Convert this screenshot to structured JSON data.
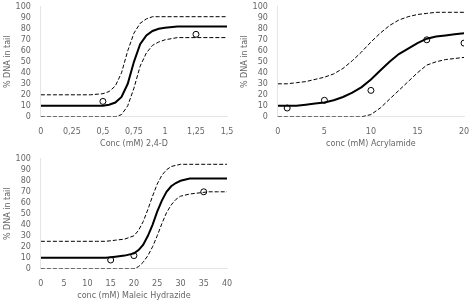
{
  "chart_data": [
    {
      "type": "line",
      "xlabel": "Conc (mM) 2,4-D",
      "ylabel": "% DNA in tail",
      "xlim": [
        0,
        1.5
      ],
      "ylim": [
        0,
        100
      ],
      "xticks": [
        0,
        {
          "value": 0.25,
          "label": "0,25"
        },
        {
          "value": 0.5,
          "label": "0,5"
        },
        {
          "value": 0.75,
          "label": "0,75"
        },
        1,
        {
          "value": 1.25,
          "label": "1,25"
        },
        {
          "value": 1.5,
          "label": "1,5"
        }
      ],
      "yticks": [
        0,
        10,
        20,
        30,
        40,
        50,
        60,
        70,
        80,
        90,
        100
      ],
      "grid": false,
      "series": [
        {
          "type": "line",
          "line_style": "solid",
          "color": "#000000",
          "x": [
            0,
            0.1,
            0.2,
            0.3,
            0.4,
            0.5,
            0.55,
            0.6,
            0.65,
            0.7,
            0.75,
            0.8,
            0.85,
            0.9,
            0.95,
            1.0,
            1.1,
            1.2,
            1.3,
            1.4,
            1.5
          ],
          "values": [
            10,
            10,
            10,
            10,
            10,
            10,
            11,
            13,
            18,
            30,
            50,
            66,
            74,
            78,
            80,
            81,
            82,
            82,
            82,
            82,
            82
          ]
        },
        {
          "type": "line",
          "line_style": "dashed",
          "color": "#000000",
          "x": [
            0,
            0.1,
            0.2,
            0.3,
            0.4,
            0.5,
            0.55,
            0.6,
            0.65,
            0.7,
            0.75,
            0.8,
            0.85,
            0.9,
            0.95,
            1.0,
            1.1,
            1.2,
            1.3,
            1.4,
            1.5
          ],
          "values": [
            20,
            20,
            20,
            20,
            20,
            21,
            23,
            28,
            40,
            60,
            76,
            85,
            89,
            91,
            91,
            91,
            91,
            91,
            91,
            91,
            91
          ]
        },
        {
          "type": "line",
          "line_style": "dashed",
          "color": "#000000",
          "x": [
            0,
            0.1,
            0.2,
            0.3,
            0.4,
            0.5,
            0.55,
            0.6,
            0.65,
            0.7,
            0.75,
            0.8,
            0.85,
            0.9,
            0.95,
            1.0,
            1.1,
            1.2,
            1.3,
            1.4,
            1.5
          ],
          "values": [
            0,
            0,
            0,
            0,
            0,
            0,
            0,
            0,
            2,
            10,
            26,
            46,
            58,
            65,
            68,
            70,
            72,
            72,
            72,
            72,
            72
          ]
        },
        {
          "type": "scatter",
          "marker": "circle",
          "color": "#000000",
          "x": [
            0.5,
            1.25
          ],
          "values": [
            14,
            75
          ]
        }
      ]
    },
    {
      "type": "line",
      "xlabel": "conc (mM) Acrylamide",
      "ylabel": "% DNA in tail",
      "xlim": [
        0,
        20
      ],
      "ylim": [
        0,
        100
      ],
      "xticks": [
        0,
        5,
        10,
        15,
        20
      ],
      "yticks": [
        0,
        10,
        20,
        30,
        40,
        50,
        60,
        70,
        80,
        90,
        100
      ],
      "grid": false,
      "series": [
        {
          "type": "line",
          "line_style": "solid",
          "color": "#000000",
          "x": [
            0,
            1,
            2,
            3,
            4,
            5,
            6,
            7,
            8,
            9,
            10,
            11,
            12,
            13,
            14,
            15,
            16,
            17,
            18,
            19,
            20
          ],
          "values": [
            10,
            10,
            10,
            11,
            12,
            13,
            15,
            18,
            22,
            27,
            34,
            42,
            50,
            57,
            62,
            67,
            71,
            73,
            74,
            75,
            76
          ]
        },
        {
          "type": "line",
          "line_style": "dashed",
          "color": "#000000",
          "x": [
            0,
            1,
            2,
            3,
            4,
            5,
            6,
            7,
            8,
            9,
            10,
            11,
            12,
            13,
            14,
            15,
            16,
            17,
            18,
            19,
            20
          ],
          "values": [
            30,
            30,
            31,
            32,
            34,
            36,
            39,
            44,
            51,
            59,
            68,
            76,
            83,
            88,
            91,
            93,
            94,
            95,
            95,
            95,
            95
          ]
        },
        {
          "type": "line",
          "line_style": "dashed",
          "color": "#000000",
          "x": [
            0,
            1,
            2,
            3,
            4,
            5,
            6,
            7,
            8,
            9,
            10,
            11,
            12,
            13,
            14,
            15,
            16,
            17,
            18,
            19,
            20
          ],
          "values": [
            0,
            0,
            0,
            0,
            0,
            0,
            0,
            0,
            0,
            0,
            2,
            8,
            16,
            24,
            32,
            40,
            47,
            50,
            52,
            53,
            54
          ]
        },
        {
          "type": "scatter",
          "marker": "circle",
          "color": "#000000",
          "x": [
            1,
            5,
            10,
            16,
            20
          ],
          "values": [
            8,
            15,
            24,
            70,
            67
          ]
        }
      ]
    },
    {
      "type": "line",
      "xlabel": "conc (mM) Maleic Hydrazide",
      "ylabel": "% DNA in tail",
      "xlim": [
        0,
        40
      ],
      "ylim": [
        0,
        100
      ],
      "xticks": [
        0,
        5,
        10,
        15,
        20,
        25,
        30,
        35,
        40
      ],
      "yticks": [
        0,
        10,
        20,
        30,
        40,
        50,
        60,
        70,
        80,
        90,
        100
      ],
      "grid": false,
      "series": [
        {
          "type": "line",
          "line_style": "solid",
          "color": "#000000",
          "x": [
            0,
            2,
            4,
            6,
            8,
            10,
            12,
            14,
            16,
            18,
            20,
            21,
            22,
            23,
            24,
            25,
            26,
            27,
            28,
            29,
            30,
            32,
            34,
            36,
            38,
            40
          ],
          "values": [
            10,
            10,
            10,
            10,
            10,
            10,
            10,
            10,
            11,
            12,
            14,
            17,
            22,
            30,
            40,
            52,
            62,
            70,
            75,
            78,
            80,
            82,
            82,
            82,
            82,
            82
          ]
        },
        {
          "type": "line",
          "line_style": "dashed",
          "color": "#000000",
          "x": [
            0,
            2,
            4,
            6,
            8,
            10,
            12,
            14,
            16,
            18,
            20,
            21,
            22,
            23,
            24,
            25,
            26,
            27,
            28,
            29,
            30,
            32,
            34,
            36,
            38,
            40
          ],
          "values": [
            25,
            25,
            25,
            25,
            25,
            25,
            25,
            25,
            26,
            27,
            30,
            35,
            43,
            54,
            66,
            77,
            85,
            90,
            93,
            94,
            95,
            95,
            95,
            95,
            95,
            95
          ]
        },
        {
          "type": "line",
          "line_style": "dashed",
          "color": "#000000",
          "x": [
            0,
            2,
            4,
            6,
            8,
            10,
            12,
            14,
            16,
            18,
            20,
            21,
            22,
            23,
            24,
            25,
            26,
            27,
            28,
            29,
            30,
            32,
            34,
            36,
            38,
            40
          ],
          "values": [
            0,
            0,
            0,
            0,
            0,
            0,
            0,
            0,
            0,
            0,
            0,
            2,
            6,
            12,
            20,
            30,
            41,
            51,
            58,
            63,
            66,
            68,
            69,
            70,
            70,
            70
          ]
        },
        {
          "type": "scatter",
          "marker": "circle",
          "color": "#000000",
          "x": [
            15,
            20,
            35
          ],
          "values": [
            8,
            12,
            70
          ]
        }
      ]
    }
  ]
}
